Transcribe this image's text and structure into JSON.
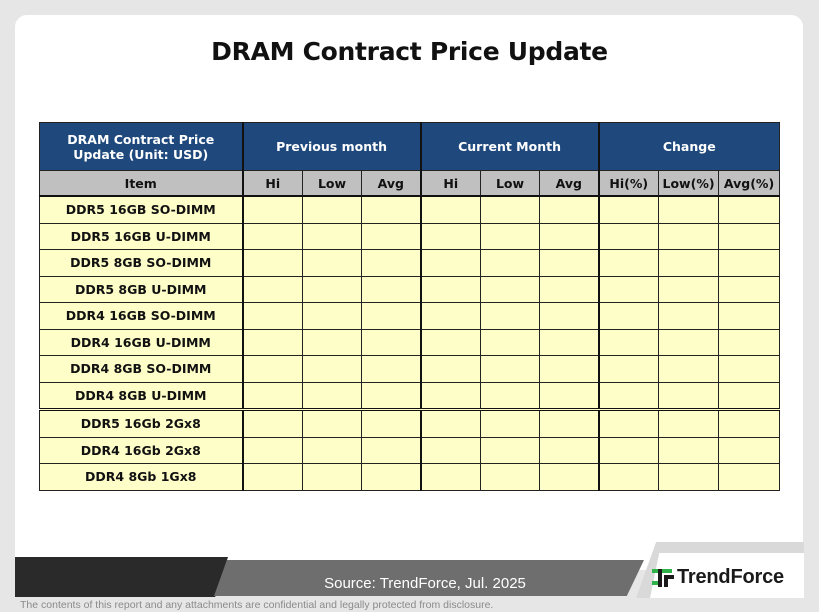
{
  "title": "DRAM Contract Price Update",
  "table": {
    "corner_label": "DRAM Contract Price Update (Unit: USD)",
    "groups": [
      "Previous month",
      "Current Month",
      "Change"
    ],
    "item_header": "Item",
    "sub_headers": [
      "Hi",
      "Low",
      "Avg",
      "Hi",
      "Low",
      "Avg",
      "Hi(%)",
      "Low(%)",
      "Avg(%)"
    ],
    "rows": [
      "DDR5 16GB SO-DIMM",
      "DDR5 16GB U-DIMM",
      "DDR5 8GB SO-DIMM",
      "DDR5 8GB U-DIMM",
      "DDR4 16GB SO-DIMM",
      "DDR4 16GB U-DIMM",
      "DDR4 8GB SO-DIMM",
      "DDR4 8GB U-DIMM",
      "DDR5 16Gb 2Gx8",
      "DDR4 16Gb 2Gx8",
      "DDR4 8Gb 1Gx8"
    ]
  },
  "footer": {
    "source": "Source: TrendForce, Jul. 2025",
    "brand": "TrendForce",
    "watermark": "TrendForce",
    "disclaimer": "The contents of this report and any attachments are confidential and legally protected from disclosure."
  },
  "colors": {
    "header_blue": "#1f497d",
    "subheader_gray": "#c0c0c0",
    "cell_yellow": "#fefec8",
    "brand_green": "#2eb34a"
  }
}
